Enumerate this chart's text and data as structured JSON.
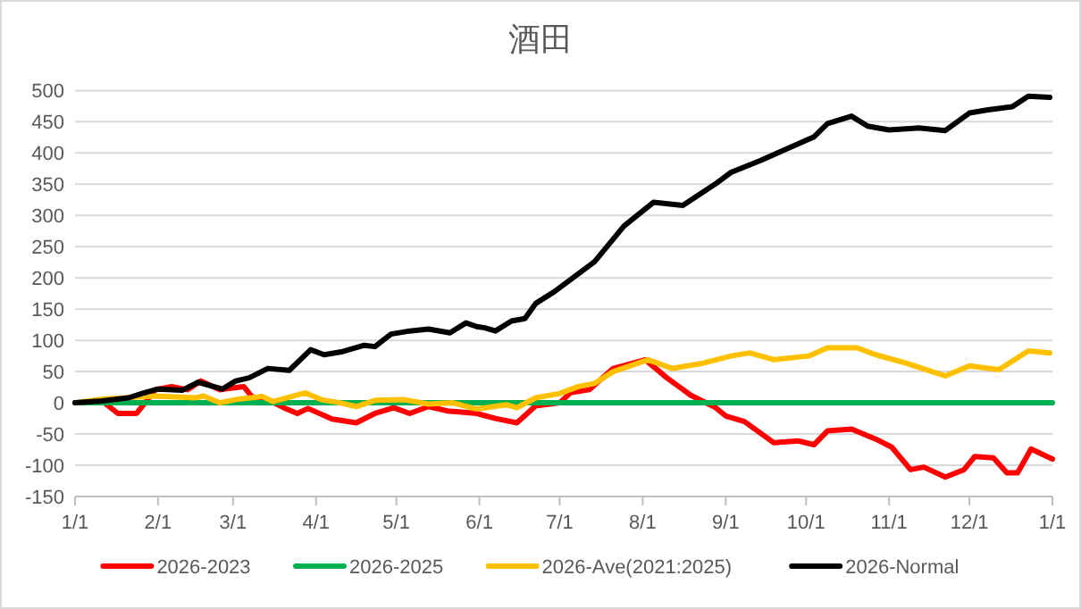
{
  "chart_data": {
    "type": "line",
    "title": "酒田",
    "xlim": [
      "2026-01-01",
      "2027-01-01"
    ],
    "xticks": [
      {
        "value": "2026-01-01",
        "label": "1/1"
      },
      {
        "value": "2026-02-01",
        "label": "2/1"
      },
      {
        "value": "2026-03-01",
        "label": "3/1"
      },
      {
        "value": "2026-04-01",
        "label": "4/1"
      },
      {
        "value": "2026-05-01",
        "label": "5/1"
      },
      {
        "value": "2026-06-01",
        "label": "6/1"
      },
      {
        "value": "2026-07-01",
        "label": "7/1"
      },
      {
        "value": "2026-08-01",
        "label": "8/1"
      },
      {
        "value": "2026-09-01",
        "label": "9/1"
      },
      {
        "value": "2026-10-01",
        "label": "10/1"
      },
      {
        "value": "2026-11-01",
        "label": "11/1"
      },
      {
        "value": "2026-12-01",
        "label": "12/1"
      },
      {
        "value": "2027-01-01",
        "label": "1/1"
      }
    ],
    "ylim": [
      -150,
      500
    ],
    "yticks": [
      -150,
      -100,
      -50,
      0,
      50,
      100,
      150,
      200,
      250,
      300,
      350,
      400,
      450,
      500
    ],
    "grid": "y",
    "legend": "bottom",
    "marker": "none",
    "line_style": "solid",
    "series": [
      {
        "name": "2026-2023",
        "color": "#ff0000",
        "x": [
          "2026-01-01",
          "2026-01-12",
          "2026-01-17",
          "2026-01-24",
          "2026-01-31",
          "2026-02-06",
          "2026-02-12",
          "2026-02-17",
          "2026-02-24",
          "2026-03-05",
          "2026-03-08",
          "2026-03-14",
          "2026-03-20",
          "2026-03-25",
          "2026-03-29",
          "2026-04-07",
          "2026-04-16",
          "2026-04-23",
          "2026-04-30",
          "2026-05-06",
          "2026-05-13",
          "2026-05-20",
          "2026-05-31",
          "2026-06-07",
          "2026-06-15",
          "2026-06-22",
          "2026-07-01",
          "2026-07-05",
          "2026-07-12",
          "2026-07-21",
          "2026-08-02",
          "2026-08-10",
          "2026-08-19",
          "2026-08-28",
          "2026-09-01",
          "2026-09-08",
          "2026-09-19",
          "2026-09-28",
          "2026-10-04",
          "2026-10-09",
          "2026-10-18",
          "2026-10-27",
          "2026-11-02",
          "2026-11-09",
          "2026-11-14",
          "2026-11-22",
          "2026-11-29",
          "2026-12-03",
          "2026-12-10",
          "2026-12-15",
          "2026-12-19",
          "2026-12-24",
          "2027-01-01"
        ],
        "values": [
          0,
          0,
          -17,
          -17,
          21,
          26,
          21,
          35,
          21,
          26,
          10,
          5,
          -8,
          -17,
          -9,
          -26,
          -32,
          -17,
          -8,
          -17,
          -6,
          -13,
          -17,
          -25,
          -32,
          -5,
          0,
          16,
          21,
          55,
          69,
          40,
          12,
          -7,
          -21,
          -30,
          -64,
          -61,
          -67,
          -45,
          -42,
          -58,
          -71,
          -107,
          -103,
          -119,
          -107,
          -86,
          -88,
          -112,
          -112,
          -74,
          -90
        ]
      },
      {
        "name": "2026-2025",
        "color": "#00b050",
        "x": [
          "2026-01-01",
          "2027-01-01"
        ],
        "values": [
          0,
          0
        ]
      },
      {
        "name": "2026-Ave(2021:2025)",
        "color": "#ffc000",
        "x": [
          "2026-01-01",
          "2026-01-11",
          "2026-01-31",
          "2026-02-15",
          "2026-02-18",
          "2026-02-24",
          "2026-03-03",
          "2026-03-12",
          "2026-03-16",
          "2026-03-28",
          "2026-04-03",
          "2026-04-10",
          "2026-04-16",
          "2026-04-23",
          "2026-05-04",
          "2026-05-13",
          "2026-05-22",
          "2026-05-31",
          "2026-06-11",
          "2026-06-15",
          "2026-06-22",
          "2026-07-01",
          "2026-07-08",
          "2026-07-14",
          "2026-07-21",
          "2026-08-03",
          "2026-08-12",
          "2026-08-23",
          "2026-09-03",
          "2026-09-10",
          "2026-09-19",
          "2026-10-02",
          "2026-10-09",
          "2026-10-20",
          "2026-10-27",
          "2026-11-07",
          "2026-11-22",
          "2026-12-01",
          "2026-12-12",
          "2026-12-23",
          "2026-12-31"
        ],
        "values": [
          0,
          6,
          11,
          8,
          11,
          0,
          6,
          10,
          2,
          16,
          5,
          0,
          -6,
          4,
          5,
          -2,
          0,
          -10,
          -3,
          -8,
          8,
          15,
          26,
          31,
          50,
          69,
          55,
          63,
          75,
          80,
          69,
          75,
          88,
          88,
          77,
          64,
          43,
          59,
          53,
          83,
          80
        ]
      },
      {
        "name": "2026-Normal",
        "color": "#000000",
        "x": [
          "2026-01-01",
          "2026-01-11",
          "2026-01-21",
          "2026-01-26",
          "2026-02-01",
          "2026-02-10",
          "2026-02-16",
          "2026-02-25",
          "2026-03-02",
          "2026-03-07",
          "2026-03-14",
          "2026-03-22",
          "2026-03-30",
          "2026-04-04",
          "2026-04-11",
          "2026-04-19",
          "2026-04-23",
          "2026-04-29",
          "2026-05-06",
          "2026-05-13",
          "2026-05-21",
          "2026-05-27",
          "2026-05-31",
          "2026-06-03",
          "2026-06-07",
          "2026-06-13",
          "2026-06-18",
          "2026-06-22",
          "2026-06-29",
          "2026-07-14",
          "2026-07-25",
          "2026-08-05",
          "2026-08-16",
          "2026-08-28",
          "2026-09-03",
          "2026-09-14",
          "2026-09-23",
          "2026-10-04",
          "2026-10-09",
          "2026-10-18",
          "2026-10-24",
          "2026-11-01",
          "2026-11-12",
          "2026-11-22",
          "2026-12-01",
          "2026-12-08",
          "2026-12-17",
          "2026-12-23",
          "2026-12-31"
        ],
        "values": [
          0,
          3,
          8,
          15,
          22,
          20,
          33,
          22,
          35,
          40,
          55,
          52,
          85,
          77,
          82,
          92,
          90,
          110,
          115,
          118,
          112,
          128,
          122,
          120,
          115,
          131,
          135,
          159,
          178,
          226,
          283,
          321,
          316,
          350,
          369,
          388,
          405,
          426,
          447,
          459,
          443,
          437,
          440,
          436,
          464,
          469,
          474,
          491,
          489
        ]
      }
    ]
  }
}
